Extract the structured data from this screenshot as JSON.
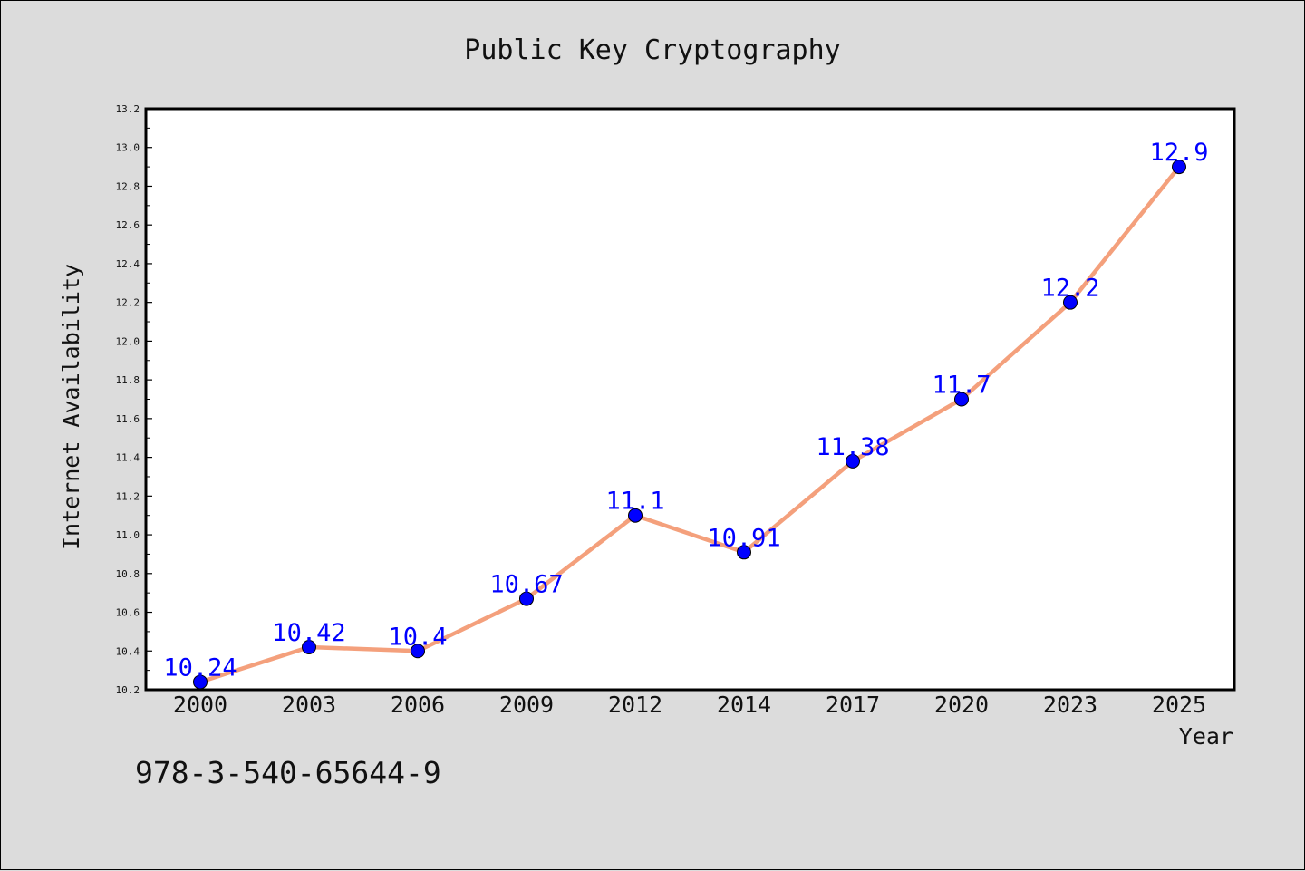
{
  "chart_data": {
    "type": "line",
    "title": "Public Key Cryptography",
    "xlabel": "Year",
    "ylabel": "Internet Availability",
    "categories": [
      "2000",
      "2003",
      "2006",
      "2009",
      "2012",
      "2014",
      "2017",
      "2020",
      "2023",
      "2025"
    ],
    "values": [
      10.24,
      10.42,
      10.4,
      10.67,
      11.1,
      10.91,
      11.38,
      11.7,
      12.2,
      12.9
    ],
    "data_labels": [
      "10.24",
      "10.42",
      "10.4",
      "10.67",
      "11.1",
      "10.91",
      "11.38",
      "11.7",
      "12.2",
      "12.9"
    ],
    "ylim": [
      10.2,
      13.2
    ],
    "yticks": [
      "10.2",
      "10.4",
      "10.6",
      "10.8",
      "11.0",
      "11.2",
      "11.4",
      "11.6",
      "11.8",
      "12.0",
      "12.2",
      "12.4",
      "12.6",
      "12.8",
      "13.0",
      "13.2"
    ],
    "grid": false,
    "line_color": "#f4a07c",
    "marker_color": "#0000ff",
    "label_color": "#0000ff",
    "background_color": "#dcdcdc",
    "plot_background_color": "#ffffff"
  },
  "footer": {
    "isbn": "978-3-540-65644-9"
  }
}
